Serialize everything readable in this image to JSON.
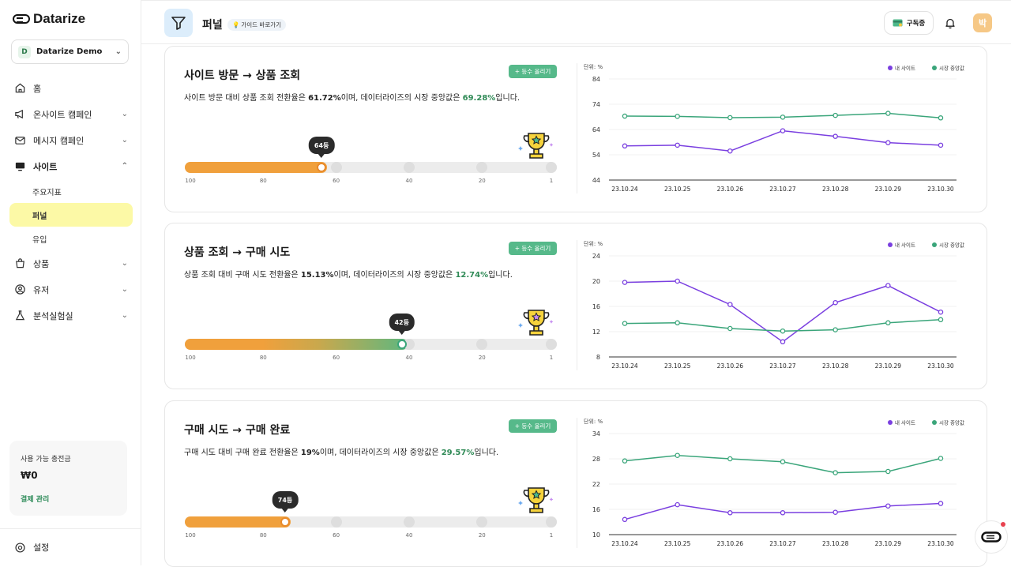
{
  "app": {
    "name": "Datarize"
  },
  "workspace": {
    "badge": "D",
    "name": "Datarize Demo"
  },
  "nav": {
    "home": "홈",
    "onsite": "온사이트 캠페인",
    "message": "메시지 캠페인",
    "site": "사이트",
    "site_sub": [
      "주요지표",
      "퍼널",
      "유입"
    ],
    "product": "상품",
    "user": "유저",
    "lab": "분석실험실",
    "settings": "설정"
  },
  "credit": {
    "label": "사용 가능 충전금",
    "amount": "₩0",
    "link": "결제 관리"
  },
  "header": {
    "title": "퍼널",
    "guide": "가이드 바로가기",
    "subscribe": "구독중",
    "avatar": "박"
  },
  "cards": [
    {
      "title": "사이트 방문 → 상품 조회",
      "desc_pre": "사이트 방문 대비 상품 조회 전환율은 ",
      "rate": "61.72%",
      "desc_mid": "이며, 데이터라이즈의 시장 중앙값은 ",
      "median": "69.28%",
      "desc_post": "입니다.",
      "rank_up": "등수 올리기",
      "rank_label": "64등",
      "rank": 64,
      "bar_color": "#e88a2b",
      "gradient": false,
      "ticks": [
        "100",
        "80",
        "60",
        "40",
        "20",
        "1"
      ]
    },
    {
      "title": "상품 조회 → 구매 시도",
      "desc_pre": "상품 조회 대비 구매 시도 전환율은 ",
      "rate": "15.13%",
      "desc_mid": "이며, 데이터라이즈의 시장 중앙값은 ",
      "median": "12.74%",
      "desc_post": "입니다.",
      "rank_up": "등수 올리기",
      "rank_label": "42등",
      "rank": 42,
      "bar_color": "#3aa57a",
      "gradient": true,
      "ticks": [
        "100",
        "80",
        "60",
        "40",
        "20",
        "1"
      ]
    },
    {
      "title": "구매 시도 → 구매 완료",
      "desc_pre": "구매 시도 대비 구매 완료 전환율은 ",
      "rate": "19%",
      "desc_mid": "이며, 데이터라이즈의 시장 중앙값은 ",
      "median": "29.57%",
      "desc_post": "입니다.",
      "rank_up": "등수 올리기",
      "rank_label": "74등",
      "rank": 74,
      "bar_color": "#e88a2b",
      "gradient": false,
      "ticks": [
        "100",
        "80",
        "60",
        "40",
        "20",
        "1"
      ]
    }
  ],
  "colors": {
    "mine": "#7a3fe0",
    "market": "#3aa57a"
  },
  "chart_data": [
    {
      "type": "line",
      "title": "사이트 방문 → 상품 조회",
      "ylabel": "단위: %",
      "x": [
        "23.10.24",
        "23.10.25",
        "23.10.26",
        "23.10.27",
        "23.10.28",
        "23.10.29",
        "23.10.30"
      ],
      "yticks": [
        84,
        74,
        64,
        54,
        44
      ],
      "ylim": [
        44,
        84
      ],
      "series": [
        {
          "name": "내 사이트",
          "values": [
            57.5,
            57.8,
            55.5,
            63.5,
            61.3,
            58.8,
            57.8
          ]
        },
        {
          "name": "시장 중앙값",
          "values": [
            69.3,
            69.2,
            68.7,
            68.9,
            69.6,
            70.4,
            68.6
          ]
        }
      ]
    },
    {
      "type": "line",
      "title": "상품 조회 → 구매 시도",
      "ylabel": "단위: %",
      "x": [
        "23.10.24",
        "23.10.25",
        "23.10.26",
        "23.10.27",
        "23.10.28",
        "23.10.29",
        "23.10.30"
      ],
      "yticks": [
        24,
        20,
        16,
        12,
        8
      ],
      "ylim": [
        8,
        24
      ],
      "series": [
        {
          "name": "내 사이트",
          "values": [
            19.8,
            20.0,
            16.3,
            10.4,
            16.6,
            19.3,
            15.1
          ]
        },
        {
          "name": "시장 중앙값",
          "values": [
            13.3,
            13.4,
            12.5,
            12.1,
            12.3,
            13.4,
            13.9
          ]
        }
      ]
    },
    {
      "type": "line",
      "title": "구매 시도 → 구매 완료",
      "ylabel": "단위: %",
      "x": [
        "23.10.24",
        "23.10.25",
        "23.10.26",
        "23.10.27",
        "23.10.28",
        "23.10.29",
        "23.10.30"
      ],
      "yticks": [
        34,
        28,
        22,
        16,
        10
      ],
      "ylim": [
        10,
        34
      ],
      "series": [
        {
          "name": "내 사이트",
          "values": [
            13.6,
            17.1,
            15.2,
            15.2,
            15.3,
            16.8,
            17.4
          ]
        },
        {
          "name": "시장 중앙값",
          "values": [
            27.5,
            28.8,
            28.0,
            27.3,
            24.7,
            25.0,
            28.1
          ]
        }
      ]
    }
  ]
}
